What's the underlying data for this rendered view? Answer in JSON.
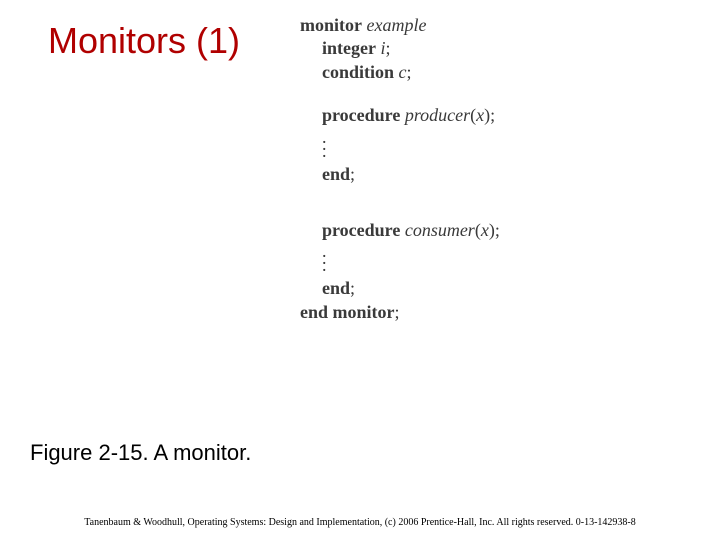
{
  "title": "Monitors (1)",
  "title_color": "#b00000",
  "title_fontsize": 36,
  "code": {
    "font_family": "Times New Roman",
    "font_size": 18,
    "text_color": "#3a3a3a",
    "keywords": {
      "monitor": "monitor",
      "integer": "integer",
      "condition": "condition",
      "procedure": "procedure",
      "end": "end",
      "end_monitor": "end monitor"
    },
    "identifiers": {
      "example": "example",
      "i": "i",
      "c": "c",
      "producer": "producer",
      "consumer": "consumer",
      "x": "x"
    },
    "punctuation": {
      "semicolon": ";",
      "open_paren": "(",
      "close_paren": ")"
    }
  },
  "caption": "Figure 2-15. A monitor.",
  "caption_fontsize": 22,
  "footer": "Tanenbaum & Woodhull, Operating Systems: Design and Implementation, (c) 2006 Prentice-Hall, Inc. All rights reserved. 0-13-142938-8",
  "footer_fontsize": 10,
  "background_color": "#ffffff"
}
